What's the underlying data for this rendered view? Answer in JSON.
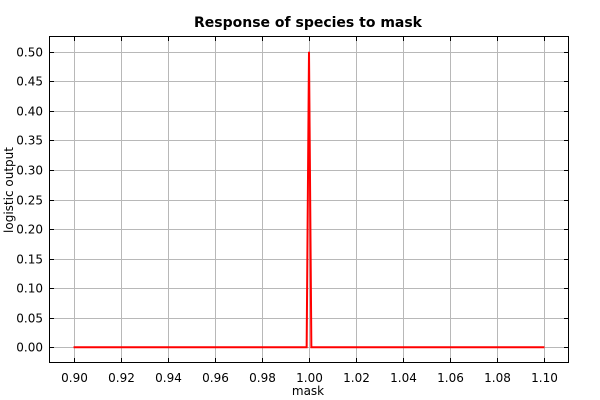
{
  "chart_data": {
    "type": "line",
    "title": "Response of species to mask",
    "xlabel": "mask",
    "ylabel": "logistic output",
    "xlim": [
      0.89,
      1.11
    ],
    "ylim": [
      -0.025,
      0.525
    ],
    "xticks": [
      "0.90",
      "0.92",
      "0.94",
      "0.96",
      "0.98",
      "1.00",
      "1.02",
      "1.04",
      "1.06",
      "1.08",
      "1.10"
    ],
    "yticks": [
      "0.00",
      "0.05",
      "0.10",
      "0.15",
      "0.20",
      "0.25",
      "0.30",
      "0.35",
      "0.40",
      "0.45",
      "0.50"
    ],
    "grid": true,
    "series": [
      {
        "color": "#ff0000",
        "x": [
          0.9,
          0.999,
          1.0,
          1.001,
          1.1
        ],
        "y": [
          0.0,
          0.0,
          0.5,
          0.0,
          0.0
        ]
      }
    ]
  }
}
